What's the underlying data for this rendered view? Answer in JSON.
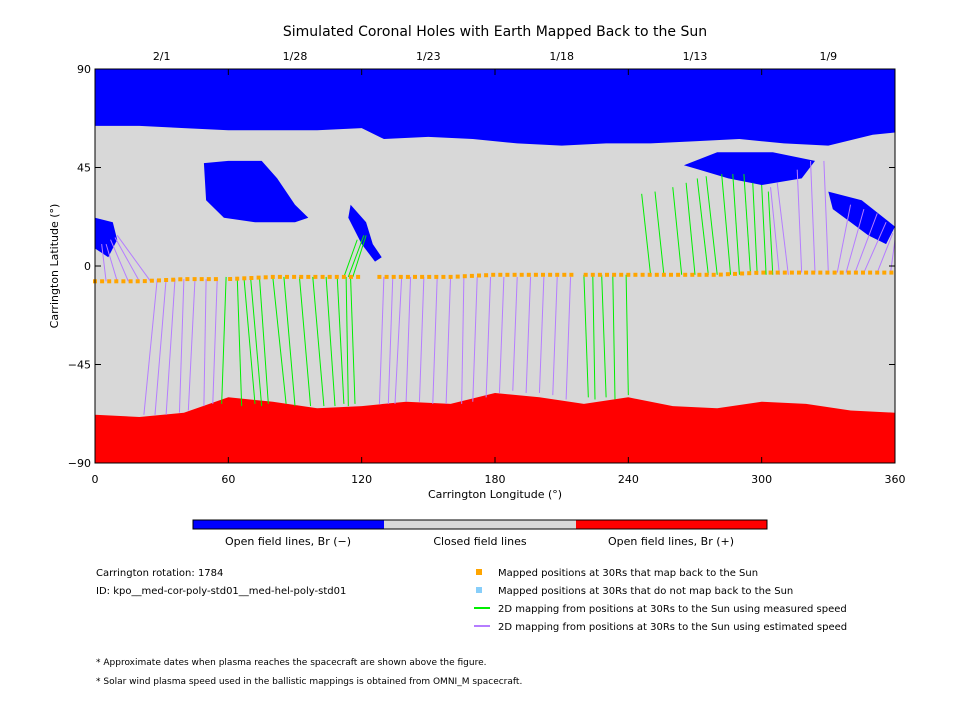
{
  "chart_data": {
    "type": "map",
    "title": "Simulated Coronal Holes with Earth Mapped Back to the Sun",
    "xlabel": "Carrington Longitude (°)",
    "ylabel": "Carrington Latitude (°)",
    "xlim": [
      0,
      360
    ],
    "ylim": [
      -90,
      90
    ],
    "xticks": [
      0,
      60,
      120,
      180,
      240,
      300,
      360
    ],
    "yticks": [
      -90,
      -45,
      0,
      45,
      90
    ],
    "top_date_ticks": [
      {
        "lon": 30,
        "label": "2/1"
      },
      {
        "lon": 90,
        "label": "1/28"
      },
      {
        "lon": 150,
        "label": "1/23"
      },
      {
        "lon": 210,
        "label": "1/18"
      },
      {
        "lon": 270,
        "label": "1/13"
      },
      {
        "lon": 330,
        "label": "1/9"
      }
    ],
    "colors": {
      "open_negative": "#0000ff",
      "closed": "#d8d8d8",
      "open_positive": "#ff0000",
      "mapped": "#ffa500",
      "unmapped": "#87cefa",
      "measured": "#00ee00",
      "estimated": "#b57dff"
    },
    "north_open_boundary": [
      [
        0,
        64
      ],
      [
        20,
        64
      ],
      [
        40,
        63
      ],
      [
        60,
        62
      ],
      [
        80,
        62
      ],
      [
        100,
        62
      ],
      [
        120,
        63
      ],
      [
        130,
        58
      ],
      [
        150,
        59
      ],
      [
        170,
        58
      ],
      [
        190,
        56
      ],
      [
        210,
        55
      ],
      [
        230,
        56
      ],
      [
        250,
        56
      ],
      [
        270,
        57
      ],
      [
        290,
        58
      ],
      [
        310,
        56
      ],
      [
        330,
        55
      ],
      [
        350,
        60
      ],
      [
        360,
        61
      ]
    ],
    "south_open_boundary": [
      [
        0,
        -68
      ],
      [
        20,
        -69
      ],
      [
        40,
        -67
      ],
      [
        60,
        -60
      ],
      [
        80,
        -62
      ],
      [
        100,
        -65
      ],
      [
        120,
        -64
      ],
      [
        140,
        -62
      ],
      [
        160,
        -63
      ],
      [
        180,
        -58
      ],
      [
        200,
        -60
      ],
      [
        220,
        -63
      ],
      [
        240,
        -60
      ],
      [
        260,
        -64
      ],
      [
        280,
        -65
      ],
      [
        300,
        -62
      ],
      [
        320,
        -63
      ],
      [
        340,
        -66
      ],
      [
        360,
        -67
      ]
    ],
    "positive_coronal_holes": [],
    "negative_coronal_holes": [
      {
        "points": [
          [
            49,
            47
          ],
          [
            60,
            48
          ],
          [
            75,
            48
          ],
          [
            82,
            40
          ],
          [
            90,
            28
          ],
          [
            96,
            22
          ],
          [
            90,
            20
          ],
          [
            72,
            20
          ],
          [
            58,
            22
          ],
          [
            50,
            30
          ]
        ]
      },
      {
        "points": [
          [
            0,
            22
          ],
          [
            8,
            20
          ],
          [
            10,
            12
          ],
          [
            6,
            4
          ],
          [
            0,
            8
          ]
        ]
      },
      {
        "points": [
          [
            330,
            34
          ],
          [
            345,
            30
          ],
          [
            360,
            18
          ],
          [
            356,
            10
          ],
          [
            348,
            14
          ],
          [
            340,
            20
          ],
          [
            332,
            26
          ]
        ]
      },
      {
        "points": [
          [
            265,
            46
          ],
          [
            272,
            44
          ],
          [
            285,
            40
          ],
          [
            300,
            37
          ],
          [
            318,
            40
          ],
          [
            324,
            48
          ],
          [
            305,
            52
          ],
          [
            280,
            52
          ]
        ]
      },
      {
        "points": [
          [
            115,
            28
          ],
          [
            122,
            20
          ],
          [
            125,
            10
          ],
          [
            129,
            4
          ],
          [
            126,
            2
          ],
          [
            120,
            10
          ],
          [
            114,
            22
          ]
        ]
      }
    ],
    "series": [
      {
        "name": "Mapped positions at 30Rs that map back to the Sun",
        "kind": "points",
        "points": [
          [
            0,
            -7
          ],
          [
            20,
            -7
          ],
          [
            40,
            -6
          ],
          [
            60,
            -6
          ],
          [
            80,
            -5
          ],
          [
            100,
            -5
          ],
          [
            120,
            -5
          ],
          [
            140,
            -5
          ],
          [
            160,
            -5
          ],
          [
            180,
            -4
          ],
          [
            200,
            -4
          ],
          [
            220,
            -4
          ],
          [
            240,
            -4
          ],
          [
            260,
            -4
          ],
          [
            280,
            -4
          ],
          [
            300,
            -3
          ],
          [
            320,
            -3
          ],
          [
            340,
            -3
          ],
          [
            360,
            -3
          ]
        ]
      },
      {
        "name": "Mapped positions at 30Rs that do not map back to the Sun",
        "kind": "points",
        "points": []
      },
      {
        "name": "2D mapping from positions at 30Rs to the Sun using measured speed",
        "kind": "lines",
        "lines": [
          [
            59,
            -5,
            57,
            -63
          ],
          [
            64,
            -5,
            66,
            -64
          ],
          [
            67,
            -5,
            72,
            -63
          ],
          [
            70,
            -5,
            75,
            -64
          ],
          [
            74,
            -5,
            78,
            -63
          ],
          [
            80,
            -5,
            86,
            -63
          ],
          [
            85,
            -5,
            90,
            -64
          ],
          [
            92,
            -5,
            97,
            -64
          ],
          [
            98,
            -5,
            103,
            -64
          ],
          [
            104,
            -5,
            108,
            -64
          ],
          [
            109,
            -5,
            112,
            -63
          ],
          [
            113,
            -5,
            114,
            -64
          ],
          [
            115,
            -5,
            117,
            -63
          ],
          [
            112,
            -5,
            118,
            12
          ],
          [
            114,
            -5,
            121,
            14
          ],
          [
            116,
            -5,
            122,
            14
          ],
          [
            220,
            -4,
            222,
            -60
          ],
          [
            224,
            -4,
            225,
            -61
          ],
          [
            228,
            -4,
            230,
            -60
          ],
          [
            233,
            -4,
            234,
            -61
          ],
          [
            239,
            -4,
            240,
            -59
          ],
          [
            250,
            -4,
            246,
            33
          ],
          [
            256,
            -4,
            252,
            34
          ],
          [
            264,
            -4,
            260,
            36
          ],
          [
            270,
            -4,
            266,
            38
          ],
          [
            276,
            -4,
            271,
            40
          ],
          [
            280,
            -4,
            275,
            41
          ],
          [
            286,
            -4,
            282,
            42
          ],
          [
            290,
            -4,
            287,
            42
          ],
          [
            295,
            -4,
            292,
            42
          ],
          [
            298,
            -4,
            296,
            38
          ],
          [
            302,
            -4,
            300,
            37
          ],
          [
            305,
            -4,
            303,
            34
          ]
        ]
      },
      {
        "name": "2D mapping from positions at 30Rs to the Sun using estimated speed",
        "kind": "lines",
        "lines": [
          [
            0,
            -7,
            0,
            10
          ],
          [
            5,
            -7,
            3,
            10
          ],
          [
            10,
            -7,
            5,
            10
          ],
          [
            15,
            -7,
            7,
            12
          ],
          [
            20,
            -7,
            9,
            13
          ],
          [
            25,
            -7,
            10,
            14
          ],
          [
            28,
            -6,
            22,
            -68
          ],
          [
            32,
            -6,
            27,
            -68
          ],
          [
            36,
            -6,
            32,
            -68
          ],
          [
            40,
            -6,
            38,
            -67
          ],
          [
            45,
            -6,
            42,
            -66
          ],
          [
            50,
            -6,
            49,
            -64
          ],
          [
            55,
            -6,
            53,
            -63
          ],
          [
            130,
            -5,
            128,
            -63
          ],
          [
            134,
            -5,
            132,
            -63
          ],
          [
            138,
            -5,
            135,
            -63
          ],
          [
            142,
            -5,
            140,
            -62
          ],
          [
            148,
            -5,
            146,
            -62
          ],
          [
            154,
            -5,
            152,
            -63
          ],
          [
            160,
            -5,
            158,
            -63
          ],
          [
            166,
            -5,
            165,
            -63
          ],
          [
            172,
            -5,
            170,
            -62
          ],
          [
            178,
            -5,
            176,
            -60
          ],
          [
            184,
            -5,
            182,
            -58
          ],
          [
            190,
            -5,
            188,
            -57
          ],
          [
            196,
            -5,
            194,
            -58
          ],
          [
            202,
            -5,
            200,
            -58
          ],
          [
            208,
            -5,
            206,
            -59
          ],
          [
            214,
            -5,
            212,
            -61
          ],
          [
            308,
            -4,
            304,
            36
          ],
          [
            312,
            -4,
            307,
            38
          ],
          [
            318,
            -3,
            316,
            44
          ],
          [
            324,
            -3,
            322,
            48
          ],
          [
            330,
            -3,
            328,
            48
          ],
          [
            334,
            -3,
            340,
            28
          ],
          [
            338,
            -3,
            346,
            26
          ],
          [
            342,
            -3,
            352,
            24
          ],
          [
            346,
            -3,
            356,
            20
          ],
          [
            352,
            -3,
            359,
            15
          ],
          [
            358,
            -3,
            360,
            12
          ]
        ]
      }
    ]
  },
  "colorbar": {
    "labels": [
      "Open field lines, Br (−)",
      "Closed field lines",
      "Open field lines, Br (+)"
    ]
  },
  "info": {
    "rotation": "Carrington rotation: 1784",
    "id": "ID: kpo__med-cor-poly-std01__med-hel-poly-std01"
  },
  "legend": [
    {
      "label": "Mapped positions at 30Rs that map back to the Sun",
      "marker": "square",
      "color": "#ffa500"
    },
    {
      "label": "Mapped positions at 30Rs that do not map back to the Sun",
      "marker": "square",
      "color": "#87cefa"
    },
    {
      "label": "2D mapping from positions at 30Rs to the Sun using measured speed",
      "marker": "line",
      "color": "#00ee00"
    },
    {
      "label": "2D mapping from positions at 30Rs to the Sun using estimated speed",
      "marker": "line",
      "color": "#b57dff"
    }
  ],
  "footnotes": [
    "* Approximate dates when plasma reaches the spacecraft are shown above the figure.",
    "* Solar wind plasma speed used in the ballistic mappings is obtained from OMNI_M spacecraft."
  ]
}
